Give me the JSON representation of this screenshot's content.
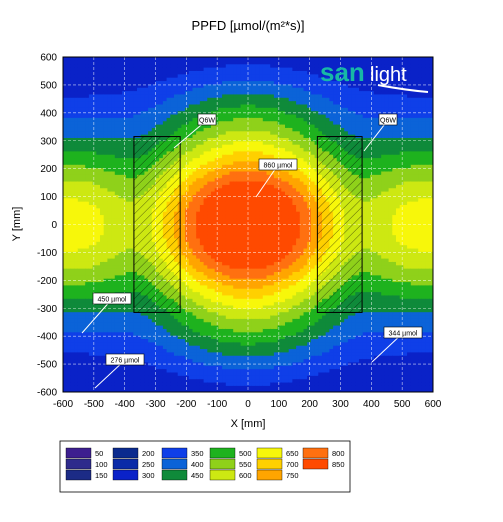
{
  "chart_data": {
    "type": "heatmap",
    "title": "PPFD [µmol/(m²*s)]",
    "xlabel": "X [mm]",
    "ylabel": "Y [mm]",
    "xlim": [
      -600,
      600
    ],
    "ylim": [
      -600,
      600
    ],
    "xticks": [
      "-600",
      "-500",
      "-400",
      "-300",
      "-200",
      "-100",
      "0",
      "100",
      "200",
      "300",
      "400",
      "500",
      "600"
    ],
    "yticks": [
      "600",
      "500",
      "400",
      "300",
      "200",
      "100",
      "0",
      "-100",
      "-200",
      "-300",
      "-400",
      "-500",
      "-600"
    ],
    "grid": true,
    "contour_levels": [
      50,
      100,
      150,
      200,
      250,
      300,
      350,
      400,
      450,
      500,
      550,
      600,
      650,
      700,
      750,
      800,
      850
    ],
    "level_colors": [
      "#3d1f8f",
      "#2e2a8c",
      "#1c2b86",
      "#0b2a8e",
      "#0a2aa8",
      "#0a22c8",
      "#0f3fe8",
      "#0b63d8",
      "#0f8a3a",
      "#1eb21e",
      "#8fd11a",
      "#cde812",
      "#f7f70a",
      "#ffd000",
      "#ffa500",
      "#ff7010",
      "#ff4a00"
    ],
    "fixtures": [
      {
        "label": "Q6W",
        "x_range": [
          -370,
          -220
        ],
        "y_range": [
          -315,
          315
        ]
      },
      {
        "label": "Q6W",
        "x_range": [
          225,
          370
        ],
        "y_range": [
          -315,
          315
        ]
      }
    ],
    "annotations": [
      {
        "text": "Q6W",
        "x": -150,
        "y": 330
      },
      {
        "text": "Q6W",
        "x": 450,
        "y": 330
      },
      {
        "text": "860 µmol",
        "x": 50,
        "y": 180
      },
      {
        "text": "450 µmol",
        "x": -460,
        "y": -270
      },
      {
        "text": "344 µmol",
        "x": 510,
        "y": -390
      },
      {
        "text": "276 µmol",
        "x": -420,
        "y": -480
      }
    ],
    "legend": [
      {
        "labels": [
          "50",
          "100",
          "150"
        ],
        "colors": [
          "#3d1f8f",
          "#2e2a8c",
          "#1c2b86"
        ]
      },
      {
        "labels": [
          "200",
          "250",
          "300"
        ],
        "colors": [
          "#0b2a8e",
          "#0a2aa8",
          "#0a22c8"
        ]
      },
      {
        "labels": [
          "350",
          "400",
          "450"
        ],
        "colors": [
          "#0f3fe8",
          "#0b63d8",
          "#0f8a3a"
        ]
      },
      {
        "labels": [
          "500",
          "550",
          "600"
        ],
        "colors": [
          "#1eb21e",
          "#8fd11a",
          "#cde812"
        ]
      },
      {
        "labels": [
          "650",
          "700",
          "750"
        ],
        "colors": [
          "#f7f70a",
          "#ffd000",
          "#ffa500"
        ]
      },
      {
        "labels": [
          "800",
          "850"
        ],
        "colors": [
          "#ff7010",
          "#ff4a00"
        ]
      }
    ],
    "legend_position": "bottom"
  },
  "logo": {
    "text_a": "san",
    "text_b": "light",
    "color_a": "#17b8a6",
    "color_b": "#ffffff"
  }
}
